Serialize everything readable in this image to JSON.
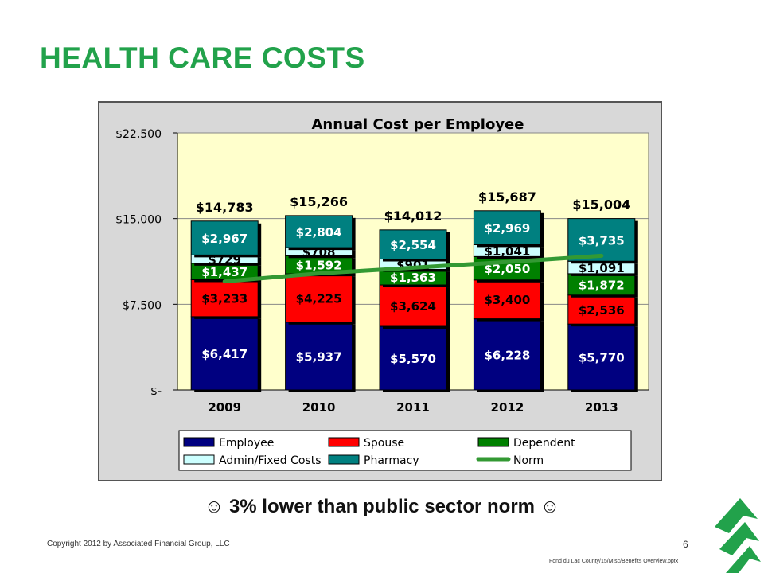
{
  "slide": {
    "title": "HEALTH CARE COSTS",
    "callout": "3% lower than public sector norm",
    "smile_left": "☺",
    "smile_right": "☺",
    "copyright": "Copyright 2012 by Associated Financial Group, LLC",
    "page_number": "6",
    "file_path": "Fond du Lac County/15/Misc/Benefits Overview.pptx"
  },
  "chart_data": {
    "type": "bar",
    "stacked": true,
    "title": "Annual Cost per Employee",
    "categories": [
      "2009",
      "2010",
      "2011",
      "2012",
      "2013"
    ],
    "ylim": [
      0,
      22500
    ],
    "yticks": [
      0,
      7500,
      15000,
      22500
    ],
    "ytick_labels": [
      "$-",
      "$7,500",
      "$15,000",
      "$22,500"
    ],
    "series": [
      {
        "name": "Employee",
        "color": "#000080",
        "label_color": "#ffffff",
        "values": [
          6417,
          5937,
          5570,
          6228,
          5770
        ],
        "labels": [
          "$6,417",
          "$5,937",
          "$5,570",
          "$6,228",
          "$5,770"
        ]
      },
      {
        "name": "Spouse",
        "color": "#ff0000",
        "label_color": "#000000",
        "values": [
          3233,
          4225,
          3624,
          3400,
          2536
        ],
        "labels": [
          "$3,233",
          "$4,225",
          "$3,624",
          "$3,400",
          "$2,536"
        ]
      },
      {
        "name": "Dependent",
        "color": "#008000",
        "label_color": "#ffffff",
        "values": [
          1437,
          1592,
          1363,
          2050,
          1872
        ],
        "labels": [
          "$1,437",
          "$1,592",
          "$1,363",
          "$2,050",
          "$1,872"
        ]
      },
      {
        "name": "Admin/Fixed Costs",
        "color": "#ccffff",
        "label_color": "#000000",
        "values": [
          729,
          708,
          901,
          1041,
          1091
        ],
        "labels": [
          "$729",
          "$708",
          "$901",
          "$1,041",
          "$1,091"
        ]
      },
      {
        "name": "Pharmacy",
        "color": "#008080",
        "label_color": "#ffffff",
        "values": [
          2967,
          2804,
          2554,
          2969,
          3735
        ],
        "labels": [
          "$2,967",
          "$2,804",
          "$2,554",
          "$2,969",
          "$3,735"
        ]
      }
    ],
    "totals": [
      "$14,783",
      "$15,266",
      "$14,012",
      "$15,687",
      "$15,004"
    ],
    "norm": {
      "name": "Norm",
      "color": "#339933",
      "values": [
        9500,
        10200,
        10700,
        11200,
        11750
      ]
    },
    "legend": {
      "position": "bottom",
      "row1": [
        "Employee",
        "Spouse",
        "Dependent"
      ],
      "row2": [
        "Admin/Fixed Costs",
        "Pharmacy",
        "Norm"
      ]
    },
    "plot_background": "#ffffcc",
    "grid": true
  }
}
